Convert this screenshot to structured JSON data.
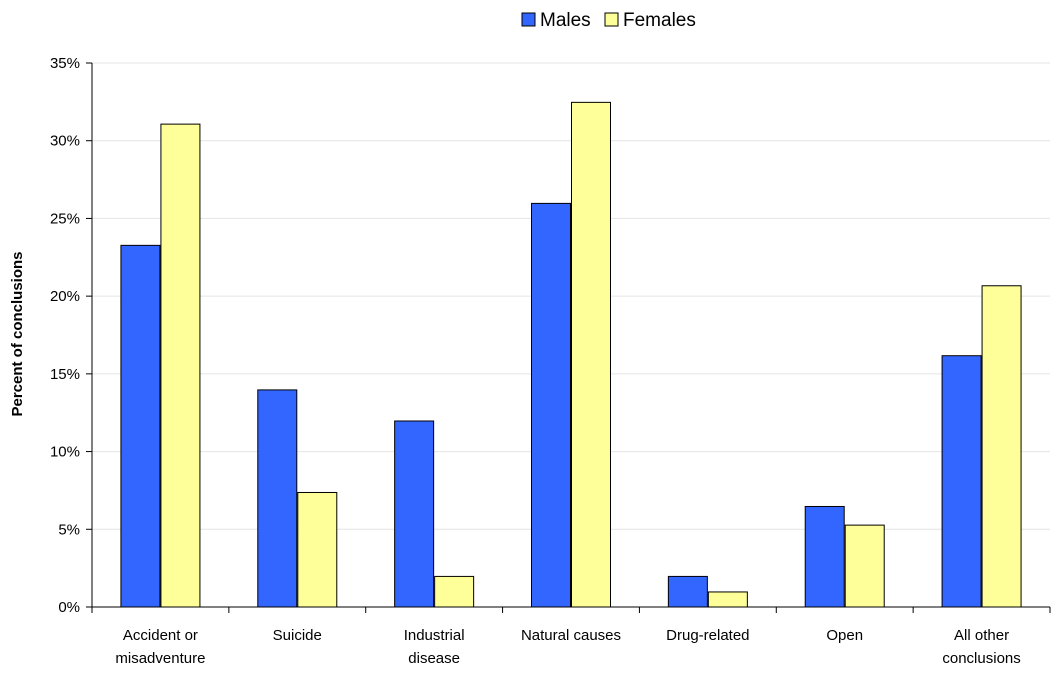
{
  "chart_data": {
    "type": "bar",
    "title": "",
    "xlabel": "",
    "ylabel": "Percent of conclusions",
    "categories": [
      [
        "Accident or",
        "misadventure"
      ],
      [
        "Suicide"
      ],
      [
        "Industrial",
        "disease"
      ],
      [
        "Natural causes"
      ],
      [
        "Drug-related"
      ],
      [
        "Open"
      ],
      [
        "All other",
        "conclusions"
      ]
    ],
    "series": [
      {
        "name": "Males",
        "color": "#3366FF",
        "values": [
          23.3,
          14.0,
          12.0,
          26.0,
          2.0,
          6.5,
          16.2
        ]
      },
      {
        "name": "Females",
        "color": "#FFFF99",
        "values": [
          31.1,
          7.4,
          2.0,
          32.5,
          1.0,
          5.3,
          20.7
        ]
      }
    ],
    "ylim": [
      0,
      35
    ],
    "yticks": [
      0,
      5,
      10,
      15,
      20,
      25,
      30,
      35
    ],
    "ytick_suffix": "%",
    "grid": true,
    "legend_position": "top-center"
  }
}
